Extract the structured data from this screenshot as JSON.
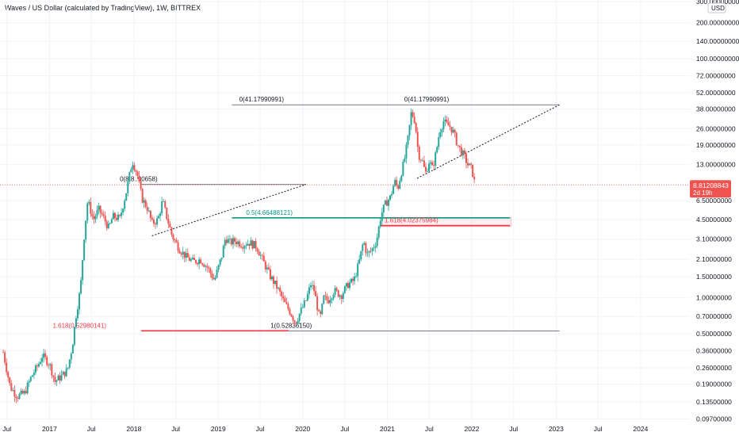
{
  "header": {
    "title": "Waves / US Dollar (calculated by TradingView), 1W, BITTREX",
    "scale_mode": "USD"
  },
  "price_badge": {
    "price": "8.81208843",
    "countdown": "2d 19h"
  },
  "colors": {
    "up": "#26a69a",
    "down": "#ef5350",
    "fib_teal": "#089981",
    "fib_red": "#f23645",
    "line_dark": "#131722",
    "badge": "#ef5350"
  },
  "chart_data": {
    "type": "candlestick",
    "y_scale": "log",
    "ylim": [
      0.092,
      310
    ],
    "xlim": [
      "2016-06-01",
      "2024-08-01"
    ],
    "y_ticks": [
      "300.00000000",
      "200.00000000",
      "140.00000000",
      "100.00000000",
      "72.00000000",
      "52.00000000",
      "38.00000000",
      "26.00000000",
      "19.00000000",
      "13.00000000",
      "6.50000000",
      "4.50000000",
      "3.10000000",
      "2.10000000",
      "1.50000000",
      "1.00000000",
      "0.70000000",
      "0.50000000",
      "0.36000000",
      "0.26000000",
      "0.19000000",
      "0.13500000",
      "0.09700000"
    ],
    "x_ticks": [
      {
        "label": "Jul",
        "x": "2016-07-01"
      },
      {
        "label": "2017",
        "x": "2017-01-01"
      },
      {
        "label": "Jul",
        "x": "2017-07-01"
      },
      {
        "label": "2018",
        "x": "2018-01-01"
      },
      {
        "label": "Jul",
        "x": "2018-07-01"
      },
      {
        "label": "2019",
        "x": "2019-01-01"
      },
      {
        "label": "Jul",
        "x": "2019-07-01"
      },
      {
        "label": "2020",
        "x": "2020-01-01"
      },
      {
        "label": "Jul",
        "x": "2020-07-01"
      },
      {
        "label": "2021",
        "x": "2021-01-01"
      },
      {
        "label": "Jul",
        "x": "2021-07-01"
      },
      {
        "label": "2022",
        "x": "2022-01-01"
      },
      {
        "label": "Jul",
        "x": "2022-07-01"
      },
      {
        "label": "2023",
        "x": "2023-01-01"
      },
      {
        "label": "Jul",
        "x": "2023-07-01"
      },
      {
        "label": "2024",
        "x": "2024-01-01"
      }
    ],
    "current_price": 8.81208843,
    "price_path": [
      [
        "2016-06-15",
        0.35
      ],
      [
        "2016-07-15",
        0.18
      ],
      [
        "2016-08-15",
        0.15
      ],
      [
        "2016-09-15",
        0.16
      ],
      [
        "2016-10-15",
        0.22
      ],
      [
        "2016-11-15",
        0.28
      ],
      [
        "2016-12-01",
        0.33
      ],
      [
        "2017-01-01",
        0.28
      ],
      [
        "2017-01-25",
        0.2
      ],
      [
        "2017-02-20",
        0.22
      ],
      [
        "2017-03-20",
        0.25
      ],
      [
        "2017-04-10",
        0.4
      ],
      [
        "2017-04-25",
        0.7
      ],
      [
        "2017-05-15",
        1.2
      ],
      [
        "2017-06-01",
        3.5
      ],
      [
        "2017-06-15",
        6.5
      ],
      [
        "2017-07-10",
        4.5
      ],
      [
        "2017-08-01",
        5.5
      ],
      [
        "2017-08-20",
        4.8
      ],
      [
        "2017-09-15",
        3.8
      ],
      [
        "2017-10-01",
        4.8
      ],
      [
        "2017-11-01",
        4.6
      ],
      [
        "2017-12-01",
        8.0
      ],
      [
        "2017-12-25",
        14.0
      ],
      [
        "2018-01-15",
        11.0
      ],
      [
        "2018-02-05",
        6.8
      ],
      [
        "2018-03-01",
        5.6
      ],
      [
        "2018-03-20",
        4.2
      ],
      [
        "2018-04-15",
        4.5
      ],
      [
        "2018-05-05",
        6.5
      ],
      [
        "2018-05-20",
        5.0
      ],
      [
        "2018-06-15",
        3.3
      ],
      [
        "2018-07-15",
        2.6
      ],
      [
        "2018-08-15",
        2.2
      ],
      [
        "2018-09-15",
        2.0
      ],
      [
        "2018-10-15",
        2.1
      ],
      [
        "2018-11-15",
        1.8
      ],
      [
        "2018-12-15",
        1.4
      ],
      [
        "2019-01-15",
        2.2
      ],
      [
        "2019-02-01",
        3.2
      ],
      [
        "2019-02-20",
        2.9
      ],
      [
        "2019-03-15",
        3.0
      ],
      [
        "2019-04-15",
        2.8
      ],
      [
        "2019-05-15",
        2.9
      ],
      [
        "2019-06-15",
        2.7
      ],
      [
        "2019-07-15",
        2.0
      ],
      [
        "2019-08-15",
        1.5
      ],
      [
        "2019-09-15",
        1.2
      ],
      [
        "2019-10-15",
        0.9
      ],
      [
        "2019-11-10",
        0.75
      ],
      [
        "2019-12-01",
        0.62
      ],
      [
        "2019-12-20",
        0.75
      ],
      [
        "2020-01-15",
        0.95
      ],
      [
        "2020-02-05",
        1.3
      ],
      [
        "2020-02-20",
        1.15
      ],
      [
        "2020-03-15",
        0.65
      ],
      [
        "2020-04-01",
        1.0
      ],
      [
        "2020-04-20",
        0.95
      ],
      [
        "2020-05-15",
        1.15
      ],
      [
        "2020-06-15",
        1.05
      ],
      [
        "2020-07-15",
        1.3
      ],
      [
        "2020-08-10",
        1.4
      ],
      [
        "2020-09-01",
        2.0
      ],
      [
        "2020-09-20",
        3.0
      ],
      [
        "2020-10-05",
        2.3
      ],
      [
        "2020-10-25",
        2.5
      ],
      [
        "2020-11-15",
        3.0
      ],
      [
        "2020-12-05",
        5.0
      ],
      [
        "2020-12-25",
        6.2
      ],
      [
        "2021-01-15",
        7.0
      ],
      [
        "2021-02-01",
        9.5
      ],
      [
        "2021-02-15",
        8.2
      ],
      [
        "2021-03-01",
        11.0
      ],
      [
        "2021-03-15",
        14.0
      ],
      [
        "2021-04-01",
        22.0
      ],
      [
        "2021-04-15",
        36.0
      ],
      [
        "2021-05-01",
        30.0
      ],
      [
        "2021-05-15",
        16.0
      ],
      [
        "2021-06-01",
        14.0
      ],
      [
        "2021-06-15",
        11.0
      ],
      [
        "2021-07-01",
        14.0
      ],
      [
        "2021-07-15",
        12.0
      ],
      [
        "2021-08-01",
        17.0
      ],
      [
        "2021-08-15",
        25.0
      ],
      [
        "2021-09-01",
        30.0
      ],
      [
        "2021-09-15",
        28.0
      ],
      [
        "2021-10-01",
        27.0
      ],
      [
        "2021-10-15",
        24.0
      ],
      [
        "2021-11-01",
        19.0
      ],
      [
        "2021-11-15",
        17.0
      ],
      [
        "2021-12-01",
        15.0
      ],
      [
        "2021-12-15",
        13.0
      ],
      [
        "2022-01-01",
        12.0
      ],
      [
        "2022-01-15",
        8.8
      ]
    ]
  },
  "annotations": {
    "fib_labels": [
      {
        "text": "0(41.17990991)",
        "price": 41.1799,
        "x": "2019-04-01",
        "color": "#131722"
      },
      {
        "text": "0(41.17990991)",
        "price": 41.1799,
        "x": "2021-03-15",
        "color": "#131722"
      },
      {
        "text": "0(8.8..90658)",
        "price": 8.89,
        "x": "2017-11-01",
        "color": "#131722"
      },
      {
        "text": "0.5(4.66488121)",
        "price": 4.66488121,
        "x": "2019-05-01",
        "color": "#089981"
      },
      {
        "text": "1.618(4.02375984)",
        "price": 4.02375984,
        "x": "2020-12-20",
        "color": "#f23645"
      },
      {
        "text": "1.618(0.52980141)",
        "price": 0.52980141,
        "x": "2017-01-15",
        "color": "#f23645"
      },
      {
        "text": "1(0.52836150)",
        "price": 0.5283615,
        "x": "2019-08-15",
        "color": "#131722"
      }
    ],
    "h_lines": [
      {
        "price": 41.1799,
        "x1": "2019-03-01",
        "x2": "2023-01-15",
        "color": "#787b86"
      },
      {
        "price": 8.89,
        "x1": "2018-02-01",
        "x2": "2020-01-15",
        "color": "#787b86"
      },
      {
        "price": 4.66488121,
        "x1": "2019-03-01",
        "x2": "2022-06-15",
        "color": "#089981"
      },
      {
        "price": 4.02375984,
        "x1": "2020-12-01",
        "x2": "2022-06-15",
        "color": "#f23645"
      },
      {
        "price": 0.52980141,
        "x1": "2018-02-01",
        "x2": "2019-11-01",
        "color": "#f23645"
      },
      {
        "price": 0.5283615,
        "x1": "2019-11-01",
        "x2": "2023-01-15",
        "color": "#787b86"
      }
    ],
    "dashed_lines": [
      {
        "x1": "2018-03-20",
        "p1": 3.3,
        "x2": "2020-01-15",
        "p2": 8.89
      },
      {
        "x1": "2021-05-10",
        "p1": 10.0,
        "x2": "2023-01-15",
        "p2": 41.1799
      }
    ],
    "zone": {
      "x1": "2020-12-01",
      "x2": "2022-06-20",
      "p_top": 4.7,
      "p_bottom": 3.95
    }
  }
}
